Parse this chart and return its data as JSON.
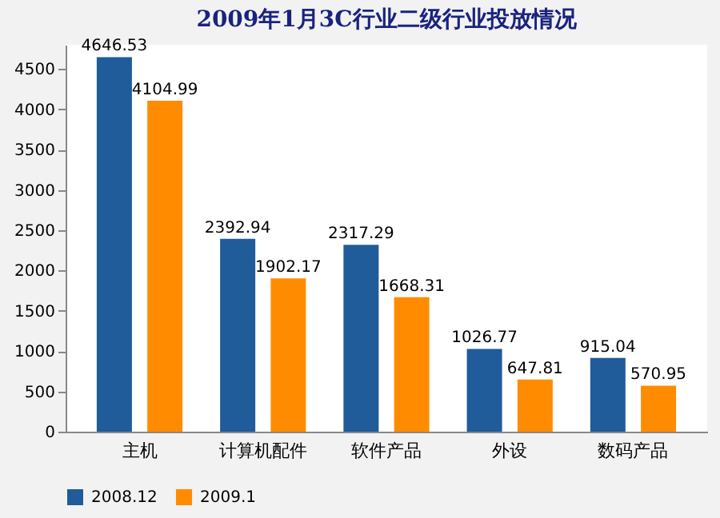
{
  "chart_data": {
    "type": "bar",
    "title": "2009年1月3C行业二级行业投放情况",
    "categories": [
      "主机",
      "计算机配件",
      "软件产品",
      "外设",
      "数码产品"
    ],
    "series": [
      {
        "name": "2008.12",
        "color": "#1f5c99",
        "values": [
          4646.53,
          2392.94,
          2317.29,
          1026.77,
          915.04
        ]
      },
      {
        "name": "2009.1",
        "color": "#ff8c00",
        "values": [
          4104.99,
          1902.17,
          1668.31,
          647.81,
          570.95
        ]
      }
    ],
    "ylim": [
      0,
      4800
    ],
    "yticks": [
      0,
      500,
      1000,
      1500,
      2000,
      2500,
      3000,
      3500,
      4000,
      4500
    ],
    "data_labels": true,
    "legend": "bottom",
    "grid": false
  }
}
